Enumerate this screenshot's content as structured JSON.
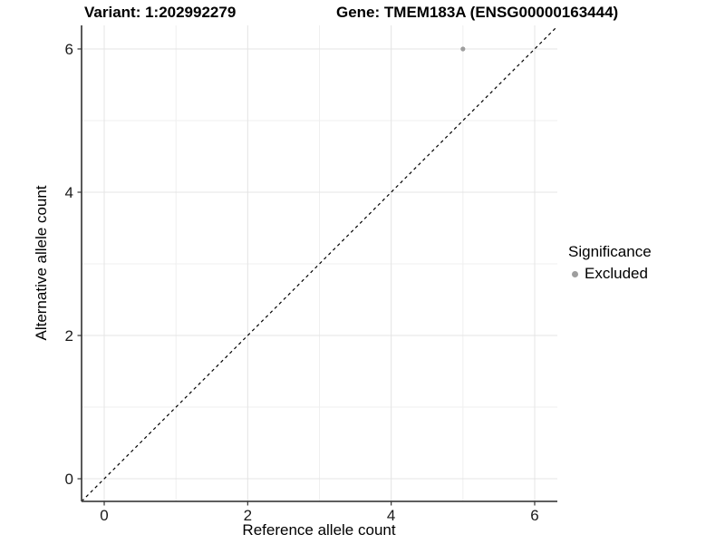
{
  "chart_data": {
    "type": "scatter",
    "title_variant": "Variant: 1:202992279",
    "title_gene": "Gene: TMEM183A (ENSG00000163444)",
    "xlabel": "Reference allele count",
    "ylabel": "Alternative allele count",
    "xlim": [
      -0.316,
      6.316
    ],
    "ylim": [
      -0.316,
      6.329
    ],
    "x_major_ticks": [
      0,
      2,
      4,
      6
    ],
    "y_major_ticks": [
      0,
      2,
      4,
      6
    ],
    "x_minor_ticks": [
      1,
      3,
      5
    ],
    "y_minor_ticks": [
      1,
      3,
      5
    ],
    "grid": true,
    "points": [
      {
        "x": 5,
        "y": 6,
        "series": "Excluded"
      }
    ],
    "reference_line": {
      "slope": 1,
      "intercept": 0,
      "style": "dashed",
      "color": "#000000"
    },
    "legend": {
      "title": "Significance",
      "position": "right",
      "items": [
        {
          "label": "Excluded",
          "color": "#9e9e9e"
        }
      ]
    }
  },
  "colors": {
    "background": "#ffffff",
    "grid_major": "#e4e4e4",
    "grid_minor": "#efefef",
    "axis_line": "#474747",
    "tick_mark": "#333333",
    "tick_label": "#1a1a1a",
    "point": "#9e9e9e"
  }
}
